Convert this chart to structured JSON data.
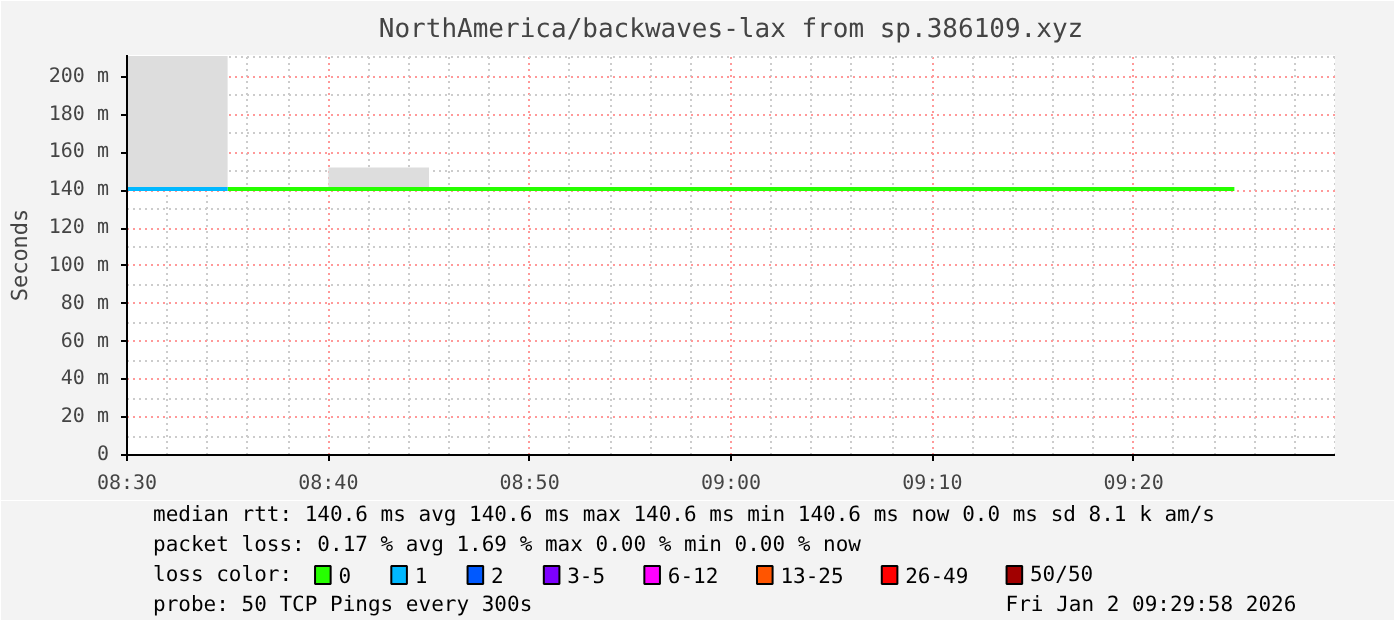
{
  "chart_data": {
    "type": "line",
    "title": "NorthAmerica/backwaves-lax from sp.386109.xyz",
    "ylabel": "Seconds",
    "xlim": [
      8.5,
      9.5
    ],
    "ylim": [
      0,
      211.5
    ],
    "xticks": [
      {
        "value": 8.5,
        "label": "08:30"
      },
      {
        "value": 8.6667,
        "label": "08:40"
      },
      {
        "value": 8.8333,
        "label": "08:50"
      },
      {
        "value": 9.0,
        "label": "09:00"
      },
      {
        "value": 9.1667,
        "label": "09:10"
      },
      {
        "value": 9.3333,
        "label": "09:20"
      }
    ],
    "yticks": [
      0,
      {
        "value": 20,
        "label": "20 m"
      },
      {
        "value": 40,
        "label": "40 m"
      },
      {
        "value": 60,
        "label": "60 m"
      },
      {
        "value": 80,
        "label": "80 m"
      },
      {
        "value": 100,
        "label": "100 m"
      },
      {
        "value": 120,
        "label": "120 m"
      },
      {
        "value": 140,
        "label": "140 m"
      },
      {
        "value": 160,
        "label": "160 m"
      },
      {
        "value": 180,
        "label": "180 m"
      },
      {
        "value": 200,
        "label": "200 m"
      }
    ],
    "series": [
      {
        "name": "0",
        "color": "#26ff00",
        "x": [
          8.5833,
          8.6667,
          8.75,
          9.4167
        ],
        "values": [
          140.6,
          140.6,
          140.6,
          140.6
        ],
        "lower": [
          null,
          140.6,
          140.6,
          null
        ],
        "upper": [
          null,
          152,
          152,
          null
        ]
      },
      {
        "name": "1",
        "color": "#00b8ff",
        "x": [
          8.5,
          8.5833
        ],
        "values": [
          140.6,
          140.6
        ],
        "lower": [
          140.6,
          140.6
        ],
        "upper": [
          211,
          211
        ]
      },
      {
        "name": "2",
        "color": "#0059ff"
      },
      {
        "name": "3-5",
        "color": "#7e00ff"
      },
      {
        "name": "6-12",
        "color": "#ff00ff"
      },
      {
        "name": "13-25",
        "color": "#ff5500"
      },
      {
        "name": "26-49",
        "color": "#ff0000"
      },
      {
        "name": "50/50",
        "color": "#a10000"
      }
    ],
    "legend": "bottom",
    "legend_title": "loss color:",
    "grid": true,
    "annotations": [
      "median rtt:  140.6 ms avg  140.6 ms max  140.6 ms min  140.6 ms now  0.0 ms sd  8.1 k am/s",
      "packet loss: 0.17 % avg  1.69 % max  0.00 % min  0.00 % now",
      "probe:        50 TCP Pings every 300s",
      "Fri Jan  2 09:29:58 2026"
    ]
  }
}
